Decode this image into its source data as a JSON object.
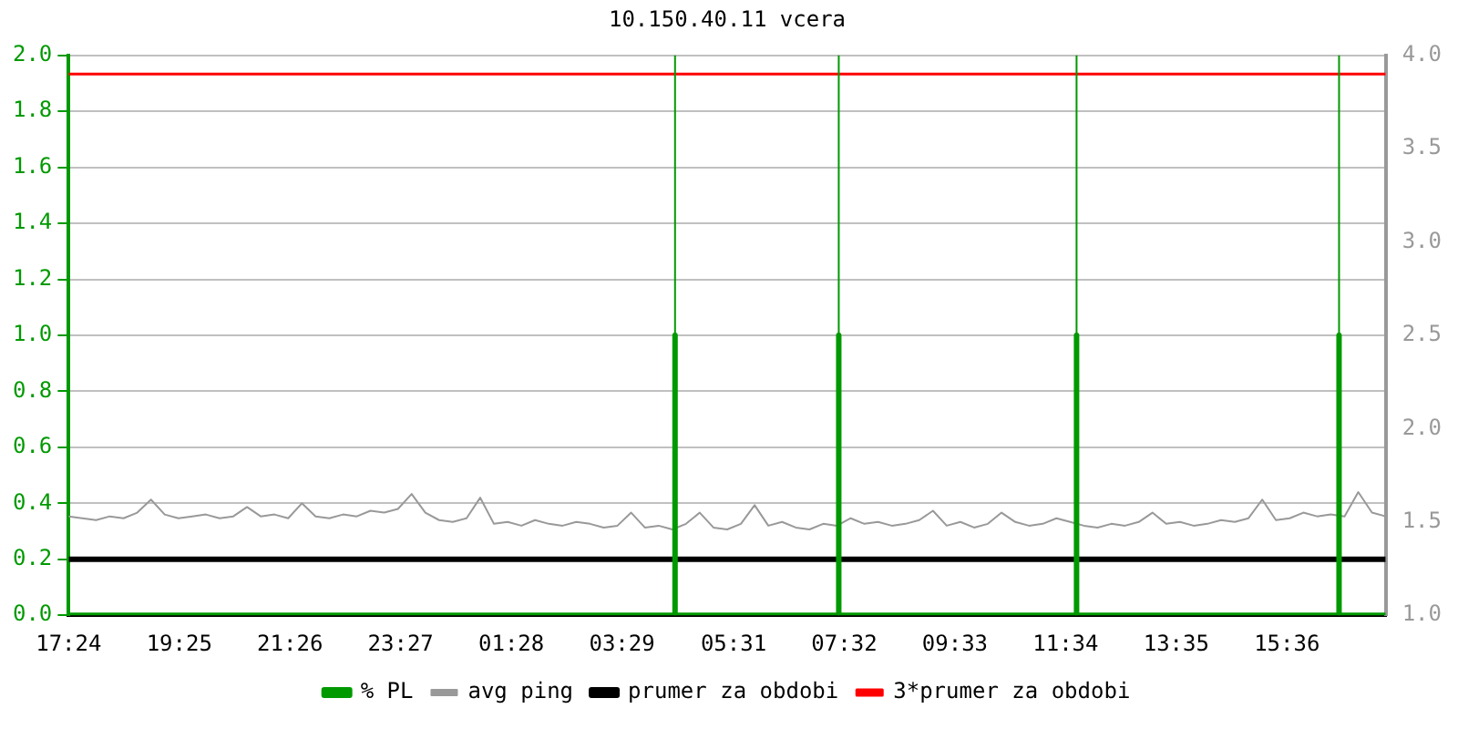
{
  "chart_data": {
    "type": "line",
    "title": "10.150.40.11 vcera",
    "grid": "y",
    "legend": "bottom",
    "marker": "none",
    "xlim": [
      "--01-01T17:24",
      "--01-02T17:24"
    ],
    "xticks": [
      {
        "value": "--01-01T17:24",
        "label": "17:24"
      },
      {
        "value": "--01-01T19:25",
        "label": "19:25"
      },
      {
        "value": "--01-01T21:26",
        "label": "21:26"
      },
      {
        "value": "--01-01T23:27",
        "label": "23:27"
      },
      {
        "value": "--01-02T01:28",
        "label": "01:28"
      },
      {
        "value": "--01-02T03:29",
        "label": "03:29"
      },
      {
        "value": "--01-02T05:31",
        "label": "05:31"
      },
      {
        "value": "--01-02T07:32",
        "label": "07:32"
      },
      {
        "value": "--01-02T09:33",
        "label": "09:33"
      },
      {
        "value": "--01-02T11:34",
        "label": "11:34"
      },
      {
        "value": "--01-02T13:35",
        "label": "13:35"
      },
      {
        "value": "--01-02T15:36",
        "label": "15:36"
      }
    ],
    "ylim": [
      0,
      2
    ],
    "yticks": [
      {
        "value": 0,
        "label": "0.0"
      },
      {
        "value": 0.2,
        "label": "0.2"
      },
      {
        "value": 0.4,
        "label": "0.4"
      },
      {
        "value": 0.6,
        "label": "0.6"
      },
      {
        "value": 0.8,
        "label": "0.8"
      },
      {
        "value": 1,
        "label": "1.0"
      },
      {
        "value": 1.2,
        "label": "1.2"
      },
      {
        "value": 1.4,
        "label": "1.4"
      },
      {
        "value": 1.6,
        "label": "1.6"
      },
      {
        "value": 1.8,
        "label": "1.8"
      },
      {
        "value": 2,
        "label": "2.0"
      }
    ],
    "y2lim": [
      1,
      4
    ],
    "y2ticks": [
      {
        "value": 1,
        "label": "1.0"
      },
      {
        "value": 1.5,
        "label": "1.5"
      },
      {
        "value": 2,
        "label": "2.0"
      },
      {
        "value": 2.5,
        "label": "2.5"
      },
      {
        "value": 3,
        "label": "3.0"
      },
      {
        "value": 3.5,
        "label": "3.5"
      },
      {
        "value": 4,
        "label": "4.0"
      }
    ],
    "ref_lines": [
      {
        "axis": "x",
        "value": "--01-02T04:27",
        "color": "#009900"
      },
      {
        "axis": "x",
        "value": "--01-02T07:26",
        "color": "#009900"
      },
      {
        "axis": "x",
        "value": "--01-02T11:46",
        "color": "#009900"
      },
      {
        "axis": "x",
        "value": "--01-02T16:33",
        "color": "#009900"
      }
    ],
    "series": [
      {
        "name": "% PL",
        "color": "#009900",
        "x": [
          "--01-01T17:24",
          "--01-02T04:27",
          "--01-02T04:27",
          "--01-02T04:27",
          "--01-02T07:26",
          "--01-02T07:26",
          "--01-02T07:26",
          "--01-02T11:46",
          "--01-02T11:46",
          "--01-02T11:46",
          "--01-02T16:33",
          "--01-02T16:33",
          "--01-02T16:33",
          "--01-02T17:24"
        ],
        "values": [
          0,
          0,
          1,
          0,
          0,
          1,
          0,
          0,
          1,
          0,
          0,
          1,
          0,
          0
        ]
      },
      {
        "name": "avg ping",
        "color": "#999999",
        "axis": "y2",
        "x": [
          "--01-01T17:24",
          "--01-01T17:39",
          "--01-01T17:54",
          "--01-01T18:09",
          "--01-01T18:24",
          "--01-01T18:39",
          "--01-01T18:54",
          "--01-01T19:09",
          "--01-01T19:24",
          "--01-01T19:39",
          "--01-01T19:54",
          "--01-01T20:09",
          "--01-01T20:24",
          "--01-01T20:39",
          "--01-01T20:54",
          "--01-01T21:09",
          "--01-01T21:24",
          "--01-01T21:39",
          "--01-01T21:54",
          "--01-01T22:09",
          "--01-01T22:24",
          "--01-01T22:39",
          "--01-01T22:54",
          "--01-01T23:09",
          "--01-01T23:24",
          "--01-01T23:39",
          "--01-01T23:54",
          "--01-02T00:09",
          "--01-02T00:24",
          "--01-02T00:39",
          "--01-02T00:54",
          "--01-02T01:09",
          "--01-02T01:24",
          "--01-02T01:39",
          "--01-02T01:54",
          "--01-02T02:09",
          "--01-02T02:24",
          "--01-02T02:39",
          "--01-02T02:54",
          "--01-02T03:09",
          "--01-02T03:24",
          "--01-02T03:39",
          "--01-02T03:54",
          "--01-02T04:09",
          "--01-02T04:24",
          "--01-02T04:39",
          "--01-02T04:54",
          "--01-02T05:09",
          "--01-02T05:24",
          "--01-02T05:39",
          "--01-02T05:54",
          "--01-02T06:09",
          "--01-02T06:24",
          "--01-02T06:39",
          "--01-02T06:54",
          "--01-02T07:09",
          "--01-02T07:24",
          "--01-02T07:39",
          "--01-02T07:54",
          "--01-02T08:09",
          "--01-02T08:24",
          "--01-02T08:39",
          "--01-02T08:54",
          "--01-02T09:09",
          "--01-02T09:24",
          "--01-02T09:39",
          "--01-02T09:54",
          "--01-02T10:09",
          "--01-02T10:24",
          "--01-02T10:39",
          "--01-02T10:54",
          "--01-02T11:09",
          "--01-02T11:24",
          "--01-02T11:39",
          "--01-02T11:54",
          "--01-02T12:09",
          "--01-02T12:24",
          "--01-02T12:39",
          "--01-02T12:54",
          "--01-02T13:09",
          "--01-02T13:24",
          "--01-02T13:39",
          "--01-02T13:54",
          "--01-02T14:09",
          "--01-02T14:24",
          "--01-02T14:39",
          "--01-02T14:54",
          "--01-02T15:09",
          "--01-02T15:24",
          "--01-02T15:39",
          "--01-02T15:54",
          "--01-02T16:09",
          "--01-02T16:24",
          "--01-02T16:39",
          "--01-02T16:54",
          "--01-02T17:09",
          "--01-02T17:24"
        ],
        "values": [
          1.53,
          1.52,
          1.51,
          1.53,
          1.52,
          1.55,
          1.62,
          1.54,
          1.52,
          1.53,
          1.54,
          1.52,
          1.53,
          1.58,
          1.53,
          1.54,
          1.52,
          1.6,
          1.53,
          1.52,
          1.54,
          1.53,
          1.56,
          1.55,
          1.57,
          1.65,
          1.55,
          1.51,
          1.5,
          1.52,
          1.63,
          1.49,
          1.5,
          1.48,
          1.51,
          1.49,
          1.48,
          1.5,
          1.49,
          1.47,
          1.48,
          1.55,
          1.47,
          1.48,
          1.46,
          1.49,
          1.55,
          1.47,
          1.46,
          1.49,
          1.59,
          1.48,
          1.5,
          1.47,
          1.46,
          1.49,
          1.48,
          1.52,
          1.49,
          1.5,
          1.48,
          1.49,
          1.51,
          1.56,
          1.48,
          1.5,
          1.47,
          1.49,
          1.55,
          1.5,
          1.48,
          1.49,
          1.52,
          1.5,
          1.48,
          1.47,
          1.49,
          1.48,
          1.5,
          1.55,
          1.49,
          1.5,
          1.48,
          1.49,
          1.51,
          1.5,
          1.52,
          1.62,
          1.51,
          1.52,
          1.55,
          1.53,
          1.54,
          1.53,
          1.66,
          1.55,
          1.53
        ]
      },
      {
        "name": "prumer za obdobi",
        "color": "#000000",
        "axis": "y2",
        "x": [
          "--01-01T17:24",
          "--01-02T17:24"
        ],
        "values": [
          1.3,
          1.3
        ]
      },
      {
        "name": "3*prumer za obdobi",
        "color": "#ff0000",
        "axis": "y2",
        "x": [
          "--01-01T17:24",
          "--01-02T17:24"
        ],
        "values": [
          3.9,
          3.9
        ]
      }
    ]
  }
}
